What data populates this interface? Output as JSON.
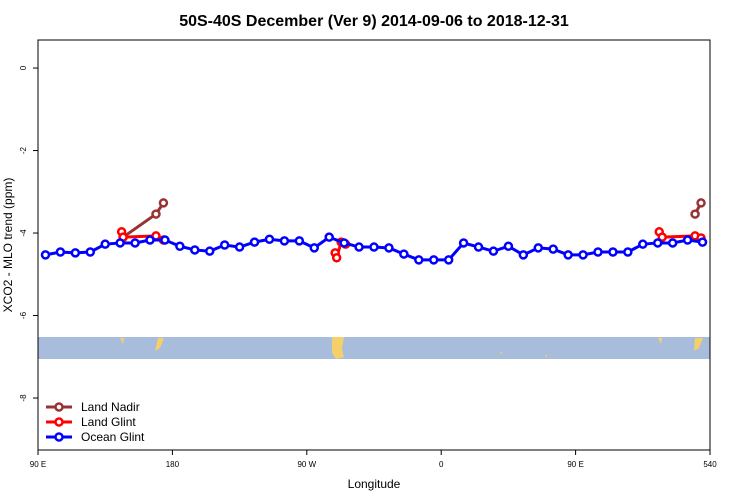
{
  "chart_data": {
    "type": "line",
    "title": "50S-40S December (Ver 9)   2014-09-06 to 2018-12-31",
    "xlabel": "Longitude",
    "ylabel": "XCO2 - MLO trend (ppm)",
    "xlim": [
      90,
      540
    ],
    "ylim": [
      -9.26,
      0.68
    ],
    "xticks": [
      {
        "value": 90,
        "label": "90 E"
      },
      180,
      {
        "value": 270,
        "label": "90 W"
      },
      {
        "value": 360,
        "label": "0"
      },
      {
        "value": 450,
        "label": "90 E"
      },
      540
    ],
    "yticks": [
      0,
      -2,
      -4,
      -6,
      -8
    ],
    "legend": "bottom-left",
    "series": [
      {
        "name": "Land Nadir",
        "color": "#993333",
        "x": [
          147,
          169,
          174,
          400,
          530,
          534
        ],
        "values": [
          -4.1,
          -3.54,
          -3.27,
          null,
          -3.54,
          -3.27
        ]
      },
      {
        "name": "Land Glint",
        "color": "#ff0000",
        "x": [
          146,
          147,
          169,
          174,
          230,
          289,
          290,
          293,
          296,
          400,
          506,
          508,
          530,
          534
        ],
        "values": [
          -3.97,
          -4.1,
          -4.07,
          -4.17,
          null,
          -4.48,
          -4.6,
          -4.22,
          -4.27,
          null,
          -3.97,
          -4.1,
          -4.07,
          -4.12
        ]
      },
      {
        "name": "Ocean Glint",
        "color": "#0000ff",
        "x": [
          95,
          105,
          115,
          125,
          135,
          145,
          155,
          165,
          175,
          185,
          195,
          205,
          215,
          225,
          235,
          245,
          255,
          265,
          275,
          285,
          295,
          305,
          315,
          325,
          335,
          345,
          355,
          365,
          375,
          385,
          395,
          405,
          415,
          425,
          435,
          445,
          455,
          465,
          475,
          485,
          495,
          505,
          515,
          525,
          535
        ],
        "values": [
          -4.53,
          -4.46,
          -4.48,
          -4.46,
          -4.27,
          -4.24,
          -4.24,
          -4.17,
          -4.17,
          -4.32,
          -4.41,
          -4.44,
          -4.29,
          -4.34,
          -4.22,
          -4.15,
          -4.19,
          -4.19,
          -4.36,
          -4.1,
          -4.24,
          -4.34,
          -4.34,
          -4.36,
          -4.51,
          -4.65,
          -4.65,
          -4.65,
          -4.24,
          -4.34,
          -4.44,
          -4.32,
          -4.53,
          -4.36,
          -4.39,
          -4.53,
          -4.53,
          -4.46,
          -4.46,
          -4.46,
          -4.27,
          -4.24,
          -4.24,
          -4.17,
          -4.22
        ]
      }
    ]
  }
}
